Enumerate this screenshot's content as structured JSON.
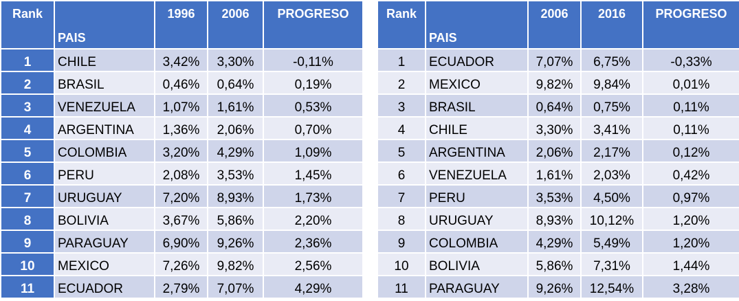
{
  "left": {
    "header": [
      "Rank",
      "PAIS",
      "1996",
      "2006",
      "PROGRESO"
    ],
    "rows": [
      [
        "1",
        "CHILE",
        "3,42%",
        "3,30%",
        "-0,11%"
      ],
      [
        "2",
        "BRASIL",
        "0,46%",
        "0,64%",
        "0,19%"
      ],
      [
        "3",
        "VENEZUELA",
        "1,07%",
        "1,61%",
        "0,53%"
      ],
      [
        "4",
        "ARGENTINA",
        "1,36%",
        "2,06%",
        "0,70%"
      ],
      [
        "5",
        "COLOMBIA",
        "3,20%",
        "4,29%",
        "1,09%"
      ],
      [
        "6",
        "PERU",
        "2,08%",
        "3,53%",
        "1,45%"
      ],
      [
        "7",
        "URUGUAY",
        "7,20%",
        "8,93%",
        "1,73%"
      ],
      [
        "8",
        "BOLIVIA",
        "3,67%",
        "5,86%",
        "2,20%"
      ],
      [
        "9",
        "PARAGUAY",
        "6,90%",
        "9,26%",
        "2,36%"
      ],
      [
        "10",
        "MEXICO",
        "7,26%",
        "9,82%",
        "2,56%"
      ],
      [
        "11",
        "ECUADOR",
        "2,79%",
        "7,07%",
        "4,29%"
      ]
    ]
  },
  "right": {
    "header": [
      "Rank",
      "PAIS",
      "2006",
      "2016",
      "PROGRESO"
    ],
    "rows": [
      [
        "1",
        "ECUADOR",
        "7,07%",
        "6,75%",
        "-0,33%"
      ],
      [
        "2",
        "MEXICO",
        "9,82%",
        "9,84%",
        "0,01%"
      ],
      [
        "3",
        "BRASIL",
        "0,64%",
        "0,75%",
        "0,11%"
      ],
      [
        "4",
        "CHILE",
        "3,30%",
        "3,41%",
        "0,11%"
      ],
      [
        "5",
        "ARGENTINA",
        "2,06%",
        "2,17%",
        "0,12%"
      ],
      [
        "6",
        "VENEZUELA",
        "1,61%",
        "2,03%",
        "0,42%"
      ],
      [
        "7",
        "PERU",
        "3,53%",
        "4,50%",
        "0,97%"
      ],
      [
        "8",
        "URUGUAY",
        "8,93%",
        "10,12%",
        "1,20%"
      ],
      [
        "9",
        "COLOMBIA",
        "4,29%",
        "5,49%",
        "1,20%"
      ],
      [
        "10",
        "BOLIVIA",
        "5,86%",
        "7,31%",
        "1,44%"
      ],
      [
        "11",
        "PARAGUAY",
        "9,26%",
        "12,54%",
        "3,28%"
      ]
    ]
  }
}
